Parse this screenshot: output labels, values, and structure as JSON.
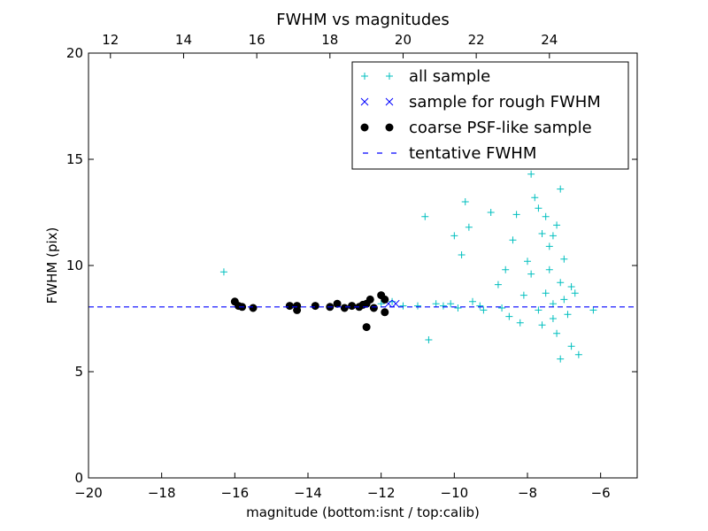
{
  "chart_data": {
    "type": "scatter",
    "title": "FWHM vs magnitudes",
    "xlabel": "magnitude (bottom:isnt / top:calib)",
    "ylabel": "FWHM (pix)",
    "xlim": [
      -20,
      -5
    ],
    "ylim": [
      0,
      20
    ],
    "x_ticks": [
      -20,
      -18,
      -16,
      -14,
      -12,
      -10,
      -8,
      -6
    ],
    "x_tick_labels": [
      "−20",
      "−18",
      "−16",
      "−14",
      "−12",
      "−10",
      "−8",
      "−6"
    ],
    "y_ticks": [
      0,
      5,
      10,
      15,
      20
    ],
    "y_tick_labels": [
      "0",
      "5",
      "10",
      "15",
      "20"
    ],
    "top_axis": {
      "offset": 31.4,
      "ticks": [
        12,
        14,
        16,
        18,
        20,
        22,
        24
      ],
      "tick_labels": [
        "12",
        "14",
        "16",
        "18",
        "20",
        "22",
        "24"
      ]
    },
    "grid": false,
    "legend_position": "top-right",
    "series": [
      {
        "name": "all sample",
        "marker": "plus",
        "color": "#00bfbf",
        "points": [
          [
            -16.3,
            9.7
          ],
          [
            -11.4,
            8.1
          ],
          [
            -11.0,
            8.1
          ],
          [
            -10.8,
            12.3
          ],
          [
            -10.7,
            6.5
          ],
          [
            -10.5,
            8.2
          ],
          [
            -10.3,
            8.1
          ],
          [
            -10.1,
            8.2
          ],
          [
            -10.0,
            11.4
          ],
          [
            -9.9,
            8.0
          ],
          [
            -9.8,
            10.5
          ],
          [
            -9.7,
            13.0
          ],
          [
            -9.5,
            8.3
          ],
          [
            -9.3,
            8.1
          ],
          [
            -9.2,
            7.9
          ],
          [
            -9.0,
            12.5
          ],
          [
            -8.8,
            9.1
          ],
          [
            -8.7,
            8.0
          ],
          [
            -8.5,
            7.6
          ],
          [
            -8.4,
            11.2
          ],
          [
            -8.3,
            12.4
          ],
          [
            -8.2,
            7.3
          ],
          [
            -8.1,
            8.6
          ],
          [
            -8.0,
            10.2
          ],
          [
            -7.9,
            9.6
          ],
          [
            -7.8,
            13.2
          ],
          [
            -7.7,
            7.9
          ],
          [
            -7.6,
            11.5
          ],
          [
            -7.6,
            7.2
          ],
          [
            -7.5,
            12.3
          ],
          [
            -7.5,
            8.7
          ],
          [
            -7.4,
            9.8
          ],
          [
            -7.4,
            10.9
          ],
          [
            -7.3,
            8.2
          ],
          [
            -7.3,
            7.5
          ],
          [
            -7.2,
            11.9
          ],
          [
            -7.2,
            6.8
          ],
          [
            -7.1,
            9.2
          ],
          [
            -7.1,
            13.6
          ],
          [
            -7.0,
            8.4
          ],
          [
            -7.0,
            10.3
          ],
          [
            -6.9,
            7.7
          ],
          [
            -6.8,
            9.0
          ],
          [
            -6.8,
            6.2
          ],
          [
            -6.7,
            8.7
          ],
          [
            -6.6,
            5.8
          ],
          [
            -7.9,
            14.3
          ],
          [
            -7.6,
            15.6
          ],
          [
            -7.3,
            11.4
          ],
          [
            -7.7,
            12.7
          ],
          [
            -8.6,
            9.8
          ],
          [
            -9.6,
            11.8
          ],
          [
            -7.1,
            5.6
          ],
          [
            -6.2,
            7.9
          ],
          [
            -12.2,
            8.0
          ],
          [
            -12.0,
            8.2
          ],
          [
            -11.7,
            8.3
          ]
        ]
      },
      {
        "name": "sample for rough FWHM",
        "marker": "x",
        "color": "#0000ff",
        "points": [
          [
            -11.8,
            8.2
          ],
          [
            -11.6,
            8.2
          ]
        ]
      },
      {
        "name": "coarse PSF-like sample",
        "marker": "circle",
        "color": "#000000",
        "points": [
          [
            -16.0,
            8.3
          ],
          [
            -15.9,
            8.1
          ],
          [
            -15.8,
            8.05
          ],
          [
            -15.5,
            8.0
          ],
          [
            -14.5,
            8.1
          ],
          [
            -14.3,
            8.1
          ],
          [
            -14.3,
            7.9
          ],
          [
            -13.8,
            8.1
          ],
          [
            -13.4,
            8.05
          ],
          [
            -13.2,
            8.2
          ],
          [
            -13.0,
            8.0
          ],
          [
            -12.8,
            8.1
          ],
          [
            -12.6,
            8.05
          ],
          [
            -12.5,
            8.15
          ],
          [
            -12.4,
            8.2
          ],
          [
            -12.3,
            8.4
          ],
          [
            -12.2,
            8.0
          ],
          [
            -12.0,
            8.6
          ],
          [
            -11.9,
            8.4
          ],
          [
            -12.4,
            7.1
          ],
          [
            -11.9,
            7.8
          ]
        ]
      },
      {
        "name": "tentative FWHM",
        "marker": "dashed-line",
        "color": "#0000ff",
        "value": 8.05
      }
    ]
  }
}
